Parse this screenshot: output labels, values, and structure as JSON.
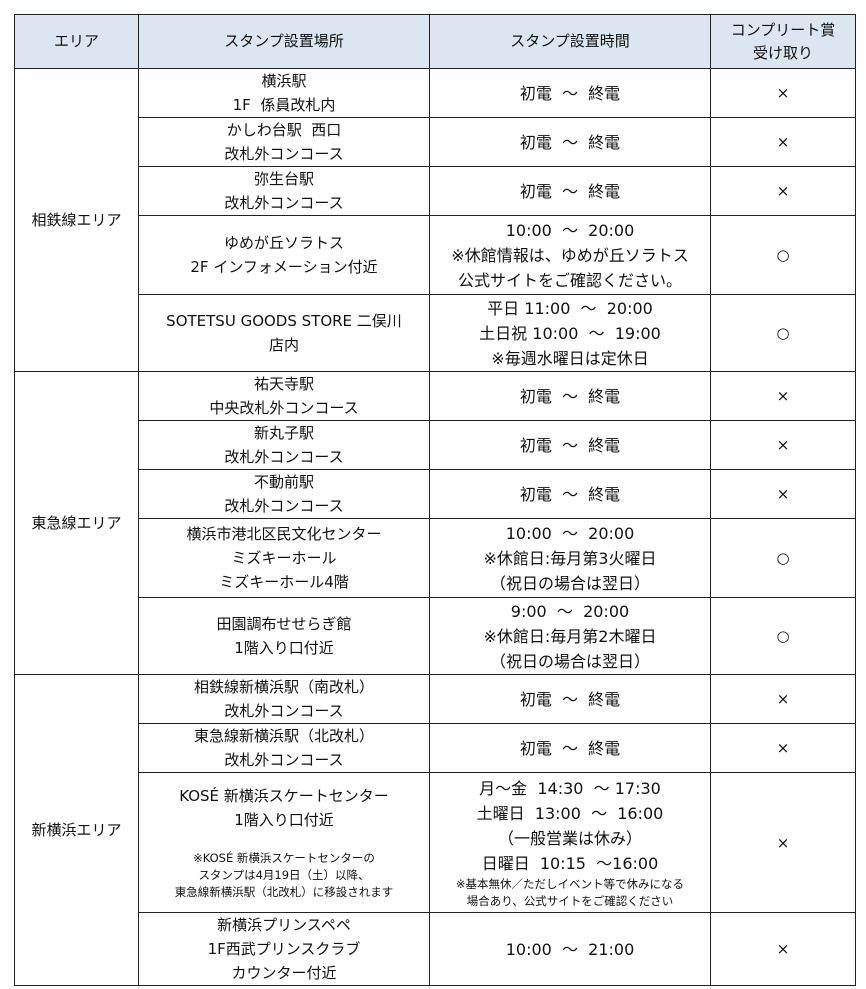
{
  "header": {
    "area": "エリア",
    "place": "スタンプ設置場所",
    "time": "スタンプ設置時間",
    "complete": [
      "コンプリート賞",
      "受け取り"
    ]
  },
  "groups": [
    {
      "area": "相鉄線エリア",
      "rows": [
        {
          "place": [
            "横浜駅",
            "1F  係員改札内"
          ],
          "time": [
            "初電  ～  終電"
          ],
          "complete": "×"
        },
        {
          "place": [
            "かしわ台駅  西口",
            "改札外コンコース"
          ],
          "time": [
            "初電  ～  終電"
          ],
          "complete": "×"
        },
        {
          "place": [
            "弥生台駅",
            "改札外コンコース"
          ],
          "time": [
            "初電  ～  終電"
          ],
          "complete": "×"
        },
        {
          "place": [
            "ゆめが丘ソラトス",
            "2F インフォメーション付近"
          ],
          "time": [
            "10:00  ～  20:00",
            "※休館情報は、ゆめが丘ソラトス",
            "公式サイトをご確認ください。"
          ],
          "complete": "○"
        },
        {
          "place": [
            "SOTETSU GOODS STORE 二俣川",
            "店内"
          ],
          "time": [
            "平日 11:00  ～  20:00",
            "土日祝 10:00  ～  19:00",
            "※毎週水曜日は定休日"
          ],
          "complete": "○"
        }
      ]
    },
    {
      "area": "東急線エリア",
      "rows": [
        {
          "place": [
            "祐天寺駅",
            "中央改札外コンコース"
          ],
          "time": [
            "初電  ～  終電"
          ],
          "complete": "×"
        },
        {
          "place": [
            "新丸子駅",
            "改札外コンコース"
          ],
          "time": [
            "初電  ～  終電"
          ],
          "complete": "×"
        },
        {
          "place": [
            "不動前駅",
            "改札外コンコース"
          ],
          "time": [
            "初電  ～  終電"
          ],
          "complete": "×"
        },
        {
          "place": [
            "横浜市港北区民文化センター",
            "ミズキーホール",
            "ミズキーホール4階"
          ],
          "time": [
            "10:00  ～  20:00",
            "※休館日:毎月第3火曜日",
            "（祝日の場合は翌日）"
          ],
          "complete": "○"
        },
        {
          "place": [
            "田園調布せせらぎ館",
            "1階入り口付近"
          ],
          "time": [
            "9:00  ～  20:00",
            "※休館日:毎月第2木曜日",
            "（祝日の場合は翌日）"
          ],
          "complete": "○"
        }
      ]
    },
    {
      "area": "新横浜エリア",
      "rows": [
        {
          "place": [
            "相鉄線新横浜駅（南改札）",
            "改札外コンコース"
          ],
          "time": [
            "初電  ～  終電"
          ],
          "complete": "×"
        },
        {
          "place": [
            "東急線新横浜駅（北改札）",
            "改札外コンコース"
          ],
          "time": [
            "初電  ～  終電"
          ],
          "complete": "×"
        },
        {
          "place": [
            "KOSÉ 新横浜スケートセンター",
            "1階入り口付近"
          ],
          "place_note": [
            "※KOSÉ 新横浜スケートセンターの",
            "スタンプは4月19日（土）以降、",
            "東急線新横浜駅（北改札）に移設されます"
          ],
          "time": [
            "月～金  14:30  ～ 17:30",
            "土曜日  13:00  ～  16:00",
            "（一般営業は休み）",
            "日曜日  10:15  ～16:00"
          ],
          "time_note": [
            "※基本無休／ただしイベント等で休みになる",
            "場合あり、公式サイトをご確認ください"
          ],
          "complete": "×"
        },
        {
          "place": [
            "新横浜プリンスペペ",
            "1F西武プリンスクラブ",
            "カウンター付近"
          ],
          "time": [
            "10:00  ～  21:00"
          ],
          "complete": "×"
        }
      ]
    }
  ]
}
